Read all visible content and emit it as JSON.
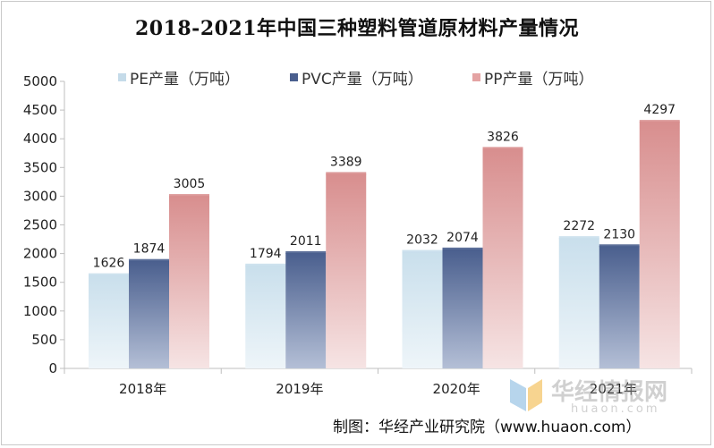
{
  "chart_data": {
    "type": "bar",
    "title": "2018-2021年中国三种塑料管道原材料产量情况",
    "categories": [
      "2018年",
      "2019年",
      "2020年",
      "2021年"
    ],
    "series": [
      {
        "name": "PE产量（万吨）",
        "values": [
          1626,
          1794,
          2032,
          2272
        ],
        "color_top": "#c9dfec",
        "color_bottom": "#eef5f9",
        "legend_color": "#c5dbe9"
      },
      {
        "name": "PVC产量（万吨）",
        "values": [
          1874,
          2011,
          2074,
          2130
        ],
        "color_top": "#4a5f8e",
        "color_bottom": "#b4bfd6",
        "legend_color": "#4a5f8e"
      },
      {
        "name": "PP产量（万吨）",
        "values": [
          3005,
          3389,
          3826,
          4297
        ],
        "color_top": "#d88e8e",
        "color_bottom": "#f6e4e4",
        "legend_color": "#e4a3a3"
      }
    ],
    "ylim": [
      0,
      5000
    ],
    "yticks": [
      0,
      500,
      1000,
      1500,
      2000,
      2500,
      3000,
      3500,
      4000,
      4500,
      5000
    ],
    "xlabel": "",
    "ylabel": "",
    "legend_position": "top",
    "grid": false
  },
  "watermark": {
    "name": "华经情报网",
    "url": "huaon.com"
  },
  "footer": {
    "text": "制图：华经产业研究院（www.huaon.com）"
  }
}
